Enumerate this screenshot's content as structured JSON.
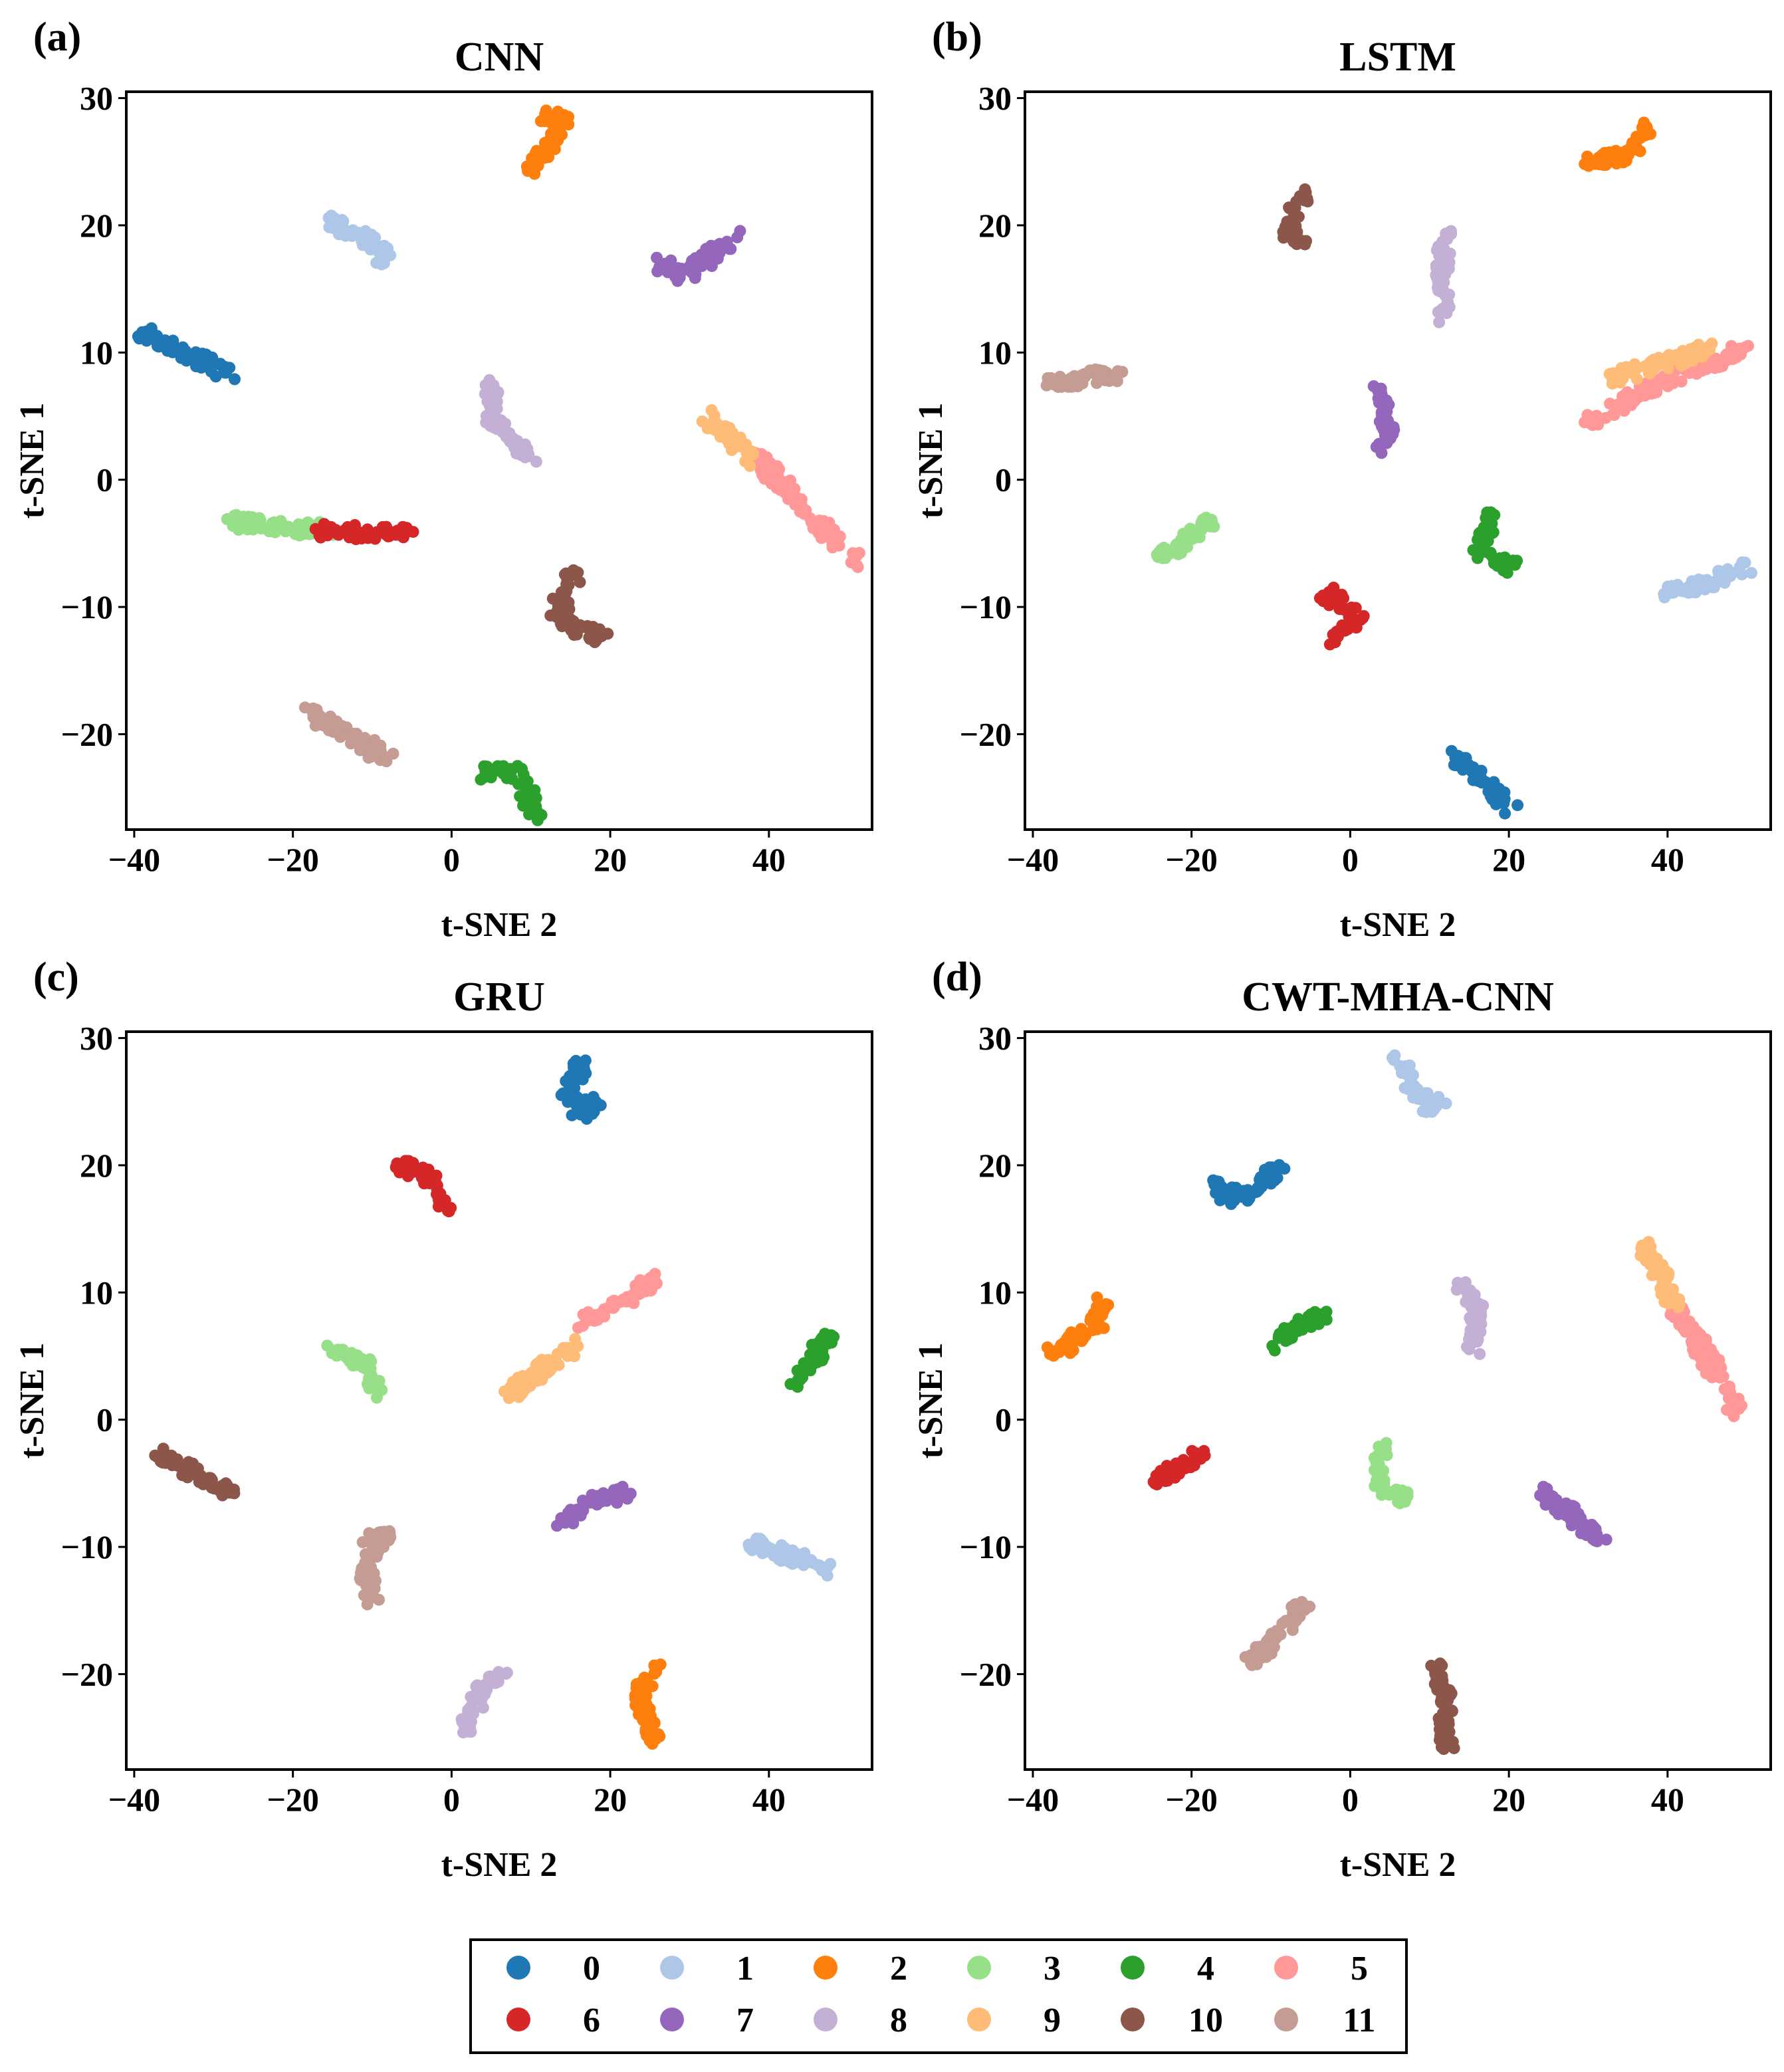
{
  "chart_data": [
    {
      "type": "scatter",
      "panel_label": "(a)",
      "title": "CNN",
      "xlabel": "t-SNE 2",
      "ylabel": "t-SNE 1",
      "xlim": [
        -41,
        53
      ],
      "ylim": [
        -27.5,
        30.5
      ],
      "xticks": [
        -40,
        -20,
        0,
        20,
        40
      ],
      "yticks": [
        -20,
        -10,
        0,
        10,
        20,
        30
      ],
      "xtick_labels": [
        "−40",
        "−20",
        "0",
        "20",
        "40"
      ],
      "ytick_labels": [
        "−20",
        "−10",
        "0",
        "10",
        "20",
        "30"
      ],
      "clusters": [
        {
          "class": 0,
          "points": [
            [
              -39,
              11.7
            ],
            [
              -28,
              8.3
            ]
          ]
        },
        {
          "class": 1,
          "points": [
            [
              -16,
              20.5
            ],
            [
              -11,
              19
            ],
            [
              -8,
              17
            ]
          ]
        },
        {
          "class": 2,
          "points": [
            [
              9,
              23.5
            ],
            [
              12,
              26
            ],
            [
              14,
              28.5
            ],
            [
              12,
              28.5
            ]
          ]
        },
        {
          "class": 3,
          "points": [
            [
              -28,
              -3.3
            ],
            [
              -15,
              -4
            ]
          ]
        },
        {
          "class": 4,
          "points": [
            [
              4,
              -23
            ],
            [
              8,
              -23
            ],
            [
              11,
              -26.5
            ]
          ]
        },
        {
          "class": 5,
          "points": [
            [
              38,
              2
            ],
            [
              51,
              -6.5
            ]
          ]
        },
        {
          "class": 6,
          "points": [
            [
              -17,
              -4
            ],
            [
              -5,
              -4.3
            ]
          ]
        },
        {
          "class": 7,
          "points": [
            [
              26,
              17
            ],
            [
              29,
              16
            ],
            [
              36,
              19.2
            ]
          ]
        },
        {
          "class": 8,
          "points": [
            [
              5,
              7.5
            ],
            [
              5,
              5
            ],
            [
              10,
              1.8
            ]
          ]
        },
        {
          "class": 9,
          "points": [
            [
              32,
              5
            ],
            [
              38,
              1.5
            ]
          ]
        },
        {
          "class": 10,
          "points": [
            [
              16,
              -7
            ],
            [
              13,
              -10
            ],
            [
              16,
              -12
            ],
            [
              19,
              -12.3
            ]
          ]
        },
        {
          "class": 11,
          "points": [
            [
              -18,
              -18.2
            ],
            [
              -8,
              -22
            ]
          ]
        }
      ]
    },
    {
      "type": "scatter",
      "panel_label": "(b)",
      "title": "LSTM",
      "xlabel": "t-SNE 2",
      "ylabel": "t-SNE 1",
      "xlim": [
        -41,
        53
      ],
      "ylim": [
        -27.5,
        30.5
      ],
      "xticks": [
        -40,
        -20,
        0,
        20,
        40
      ],
      "yticks": [
        -20,
        -10,
        0,
        10,
        20,
        30
      ],
      "xtick_labels": [
        "−40",
        "−20",
        "0",
        "20",
        "40"
      ],
      "ytick_labels": [
        "−20",
        "−10",
        "0",
        "10",
        "20",
        "30"
      ],
      "clusters": [
        {
          "class": 0,
          "points": [
            [
              13,
              -21.8
            ],
            [
              20.5,
              -26
            ]
          ]
        },
        {
          "class": 1,
          "points": [
            [
              40,
              -9
            ],
            [
              50,
              -7
            ]
          ]
        },
        {
          "class": 2,
          "points": [
            [
              30,
              25
            ],
            [
              35,
              25.5
            ],
            [
              38,
              28
            ]
          ]
        },
        {
          "class": 3,
          "points": [
            [
              -24,
              -6.2
            ],
            [
              -17,
              -3
            ]
          ]
        },
        {
          "class": 4,
          "points": [
            [
              18,
              -2.5
            ],
            [
              16,
              -5.5
            ],
            [
              20.5,
              -7
            ]
          ]
        },
        {
          "class": 5,
          "points": [
            [
              30,
              4.5
            ],
            [
              40,
              8
            ],
            [
              50,
              10.3
            ]
          ]
        },
        {
          "class": 6,
          "points": [
            [
              -3,
              -9
            ],
            [
              1,
              -11
            ],
            [
              -2,
              -12.5
            ]
          ]
        },
        {
          "class": 7,
          "points": [
            [
              3,
              7
            ],
            [
              5,
              4.5
            ],
            [
              4,
              2.5
            ]
          ]
        },
        {
          "class": 8,
          "points": [
            [
              12,
              19
            ],
            [
              11.5,
              16
            ],
            [
              11.8,
              12.8
            ]
          ]
        },
        {
          "class": 9,
          "points": [
            [
              33,
              8
            ],
            [
              45,
              10.3
            ]
          ]
        },
        {
          "class": 10,
          "points": [
            [
              -6,
              22.5
            ],
            [
              -8,
              19.8
            ],
            [
              -6,
              18.5
            ]
          ]
        },
        {
          "class": 11,
          "points": [
            [
              -38,
              7.5
            ],
            [
              -29,
              8.4
            ]
          ]
        }
      ]
    },
    {
      "type": "scatter",
      "panel_label": "(c)",
      "title": "GRU",
      "xlabel": "t-SNE 2",
      "ylabel": "t-SNE 1",
      "xlim": [
        -41,
        53
      ],
      "ylim": [
        -27.5,
        30.5
      ],
      "xticks": [
        -40,
        -20,
        0,
        20,
        40
      ],
      "yticks": [
        -20,
        -10,
        0,
        10,
        20,
        30
      ],
      "xtick_labels": [
        "−40",
        "−20",
        "0",
        "20",
        "40"
      ],
      "ytick_labels": [
        "−20",
        "−10",
        "0",
        "10",
        "20",
        "30"
      ],
      "clusters": [
        {
          "class": 0,
          "points": [
            [
              16.5,
              28
            ],
            [
              14.5,
              26
            ],
            [
              16.5,
              24
            ],
            [
              18.5,
              25.3
            ]
          ]
        },
        {
          "class": 1,
          "points": [
            [
              38,
              -9.8
            ],
            [
              48,
              -11.8
            ]
          ]
        },
        {
          "class": 2,
          "points": [
            [
              26,
              -19.5
            ],
            [
              23.5,
              -21.5
            ],
            [
              25,
              -24.5
            ],
            [
              26,
              -25.5
            ]
          ]
        },
        {
          "class": 3,
          "points": [
            [
              -15,
              5.8
            ],
            [
              -11,
              4.5
            ],
            [
              -9.5,
              2
            ]
          ]
        },
        {
          "class": 4,
          "points": [
            [
              43,
              2.8
            ],
            [
              48,
              6.8
            ]
          ]
        },
        {
          "class": 5,
          "points": [
            [
              16,
              7.5
            ],
            [
              26,
              11
            ]
          ]
        },
        {
          "class": 6,
          "points": [
            [
              -7,
              20.2
            ],
            [
              -3,
              19
            ],
            [
              0,
              16.3
            ]
          ]
        },
        {
          "class": 7,
          "points": [
            [
              14,
              -8
            ],
            [
              17,
              -6.5
            ],
            [
              22,
              -5.7
            ]
          ]
        },
        {
          "class": 8,
          "points": [
            [
              1.5,
              -24.5
            ],
            [
              4,
              -21
            ],
            [
              7,
              -20
            ]
          ]
        },
        {
          "class": 9,
          "points": [
            [
              7,
              1.8
            ],
            [
              16,
              6
            ]
          ]
        },
        {
          "class": 10,
          "points": [
            [
              -37,
              -2.5
            ],
            [
              -33,
              -4
            ],
            [
              -28,
              -5.8
            ]
          ]
        },
        {
          "class": 11,
          "points": [
            [
              -11,
              -9.5
            ],
            [
              -8,
              -9
            ],
            [
              -11,
              -11.5
            ],
            [
              -10,
              -14
            ]
          ]
        }
      ]
    },
    {
      "type": "scatter",
      "panel_label": "(d)",
      "title": "CWT-MHA-CNN",
      "xlabel": "t-SNE 2",
      "ylabel": "t-SNE 1",
      "xlim": [
        -41,
        53
      ],
      "ylim": [
        -27.5,
        30.5
      ],
      "xticks": [
        -40,
        -20,
        0,
        20,
        40
      ],
      "yticks": [
        -20,
        -10,
        0,
        10,
        20,
        30
      ],
      "xtick_labels": [
        "−40",
        "−20",
        "0",
        "20",
        "40"
      ],
      "ytick_labels": [
        "−20",
        "−10",
        "0",
        "10",
        "20",
        "30"
      ],
      "clusters": [
        {
          "class": 0,
          "points": [
            [
              -17,
              19
            ],
            [
              -16,
              17.5
            ],
            [
              -12,
              18
            ],
            [
              -9,
              20
            ]
          ]
        },
        {
          "class": 1,
          "points": [
            [
              6,
              28.5
            ],
            [
              8,
              26
            ],
            [
              10,
              24.5
            ],
            [
              11.5,
              25
            ]
          ]
        },
        {
          "class": 2,
          "points": [
            [
              -38,
              5
            ],
            [
              -32,
              7.5
            ],
            [
              -31,
              9.5
            ]
          ]
        },
        {
          "class": 3,
          "points": [
            [
              4,
              -2
            ],
            [
              3.5,
              -5
            ],
            [
              7,
              -6.3
            ]
          ]
        },
        {
          "class": 4,
          "points": [
            [
              -9,
              6
            ],
            [
              -6,
              7.5
            ],
            [
              -3,
              8.3
            ]
          ]
        },
        {
          "class": 5,
          "points": [
            [
              41,
              9
            ],
            [
              49,
              0.5
            ]
          ]
        },
        {
          "class": 6,
          "points": [
            [
              -25,
              -5
            ],
            [
              -22,
              -4
            ],
            [
              -19,
              -2.8
            ]
          ]
        },
        {
          "class": 7,
          "points": [
            [
              24,
              -5.5
            ],
            [
              28,
              -7.5
            ],
            [
              32,
              -9.5
            ]
          ]
        },
        {
          "class": 8,
          "points": [
            [
              14,
              10.5
            ],
            [
              16,
              8.5
            ],
            [
              15.5,
              5.5
            ]
          ]
        },
        {
          "class": 9,
          "points": [
            [
              37,
              14
            ],
            [
              41,
              9
            ]
          ]
        },
        {
          "class": 10,
          "points": [
            [
              11,
              -19.5
            ],
            [
              12,
              -22
            ],
            [
              12.2,
              -26
            ]
          ]
        },
        {
          "class": 11,
          "points": [
            [
              -13,
              -19.5
            ],
            [
              -6,
              -14.5
            ]
          ]
        }
      ]
    }
  ],
  "legend": {
    "entries": [
      {
        "label": "0",
        "color": "#1f77b4"
      },
      {
        "label": "1",
        "color": "#aec7e8"
      },
      {
        "label": "2",
        "color": "#ff7f0e"
      },
      {
        "label": "3",
        "color": "#98df8a"
      },
      {
        "label": "4",
        "color": "#2ca02c"
      },
      {
        "label": "5",
        "color": "#ff9896"
      },
      {
        "label": "6",
        "color": "#d62728"
      },
      {
        "label": "7",
        "color": "#9467bd"
      },
      {
        "label": "8",
        "color": "#c5b0d5"
      },
      {
        "label": "9",
        "color": "#ffbb78"
      },
      {
        "label": "10",
        "color": "#8c564b"
      },
      {
        "label": "11",
        "color": "#c49c94"
      }
    ]
  }
}
